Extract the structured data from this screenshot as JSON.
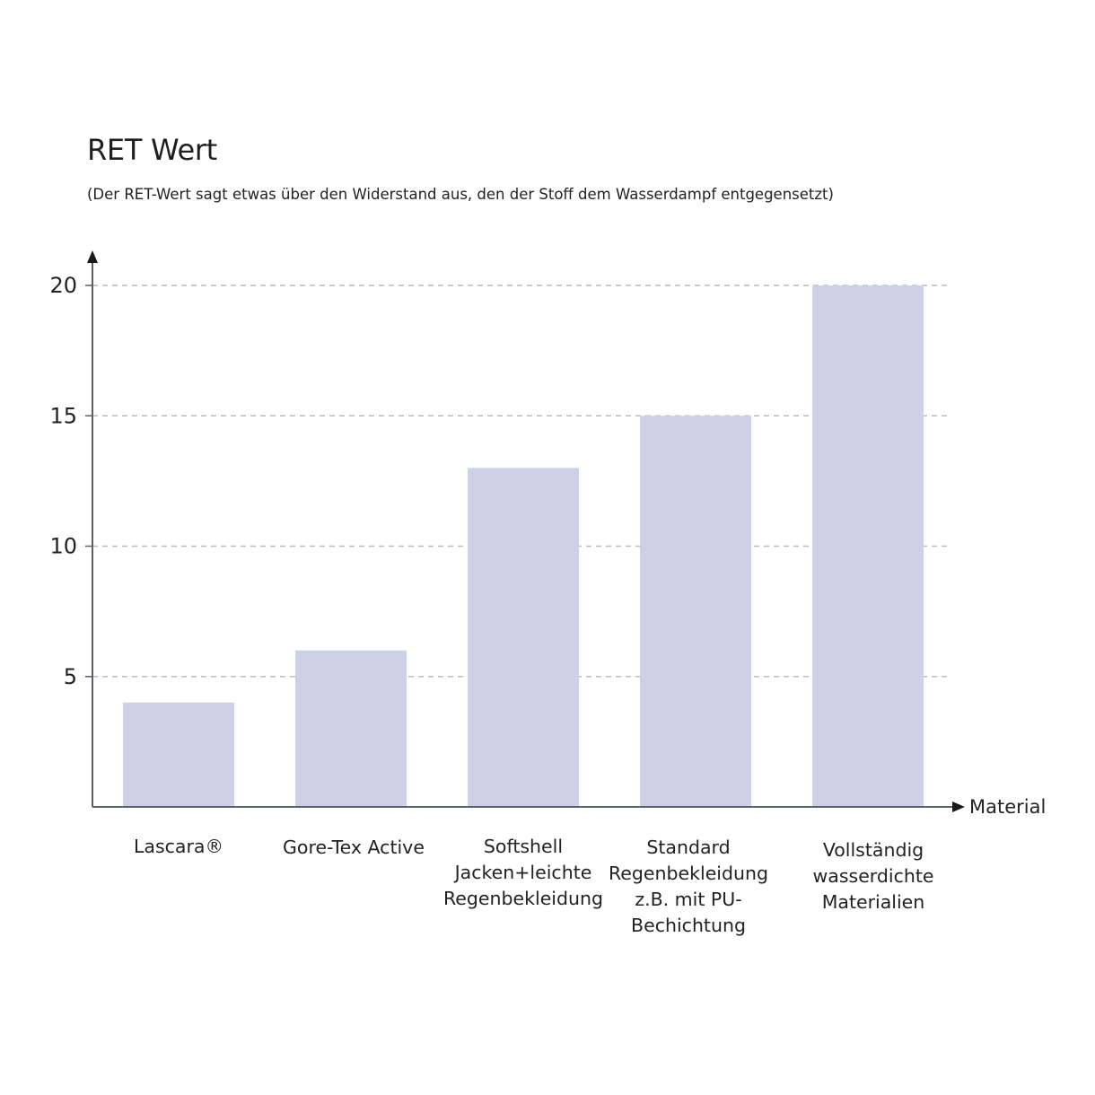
{
  "chart_data": {
    "type": "bar",
    "title": "RET Wert",
    "subtitle": "(Der RET-Wert sagt etwas über den Widerstand aus, den der Stoff dem Wasserdampf entgegensetzt)",
    "xlabel": "Material",
    "ylabel": "",
    "ylim": [
      0,
      20
    ],
    "yticks": [
      5,
      10,
      15,
      20
    ],
    "grid": true,
    "categories": [
      [
        "Lascara®"
      ],
      [
        "Gore-Tex Active"
      ],
      [
        "Softshell",
        "Jacken+leichte",
        "Regenbekleidung"
      ],
      [
        "Standard",
        "Regenbekleidung",
        "z.B. mit PU-",
        "Bechichtung"
      ],
      [
        "Vollständig",
        "wasserdichte",
        "Materialien"
      ]
    ],
    "values": [
      4,
      6,
      13,
      15,
      20
    ],
    "colors": {
      "bar": "#cdd1e8",
      "axis": "#5a6068",
      "grid": "#bcbcbc"
    }
  }
}
